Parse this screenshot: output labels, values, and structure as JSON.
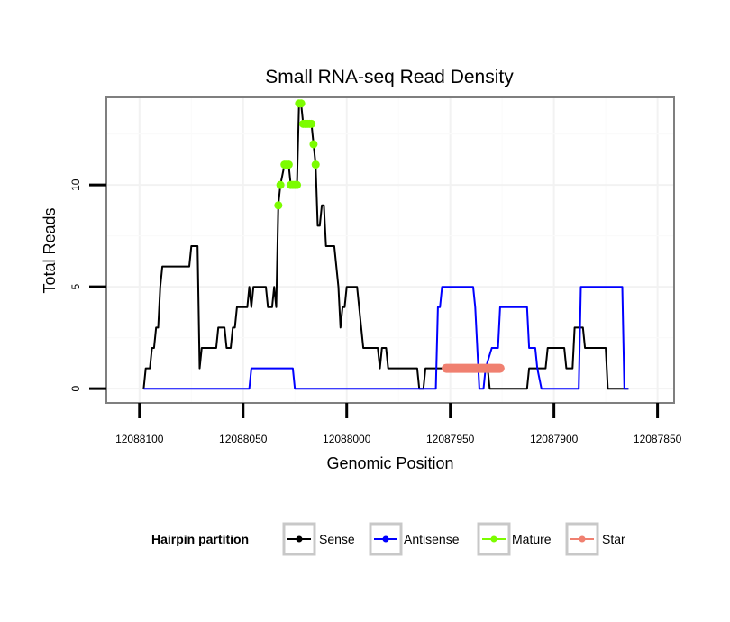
{
  "chart_data": {
    "type": "line",
    "title": "Small RNA-seq Read Density",
    "xlabel": "Genomic Position",
    "ylabel": "Total Reads",
    "x_reversed": true,
    "xlim": [
      12088116,
      12087842
    ],
    "ylim": [
      -0.7,
      14.3
    ],
    "x_ticks": [
      12088100,
      12088050,
      12088000,
      12087950,
      12087900,
      12087850
    ],
    "x_tick_labels": [
      "12088100",
      "12088050",
      "12088000",
      "12087950",
      "12087900",
      "12087850"
    ],
    "y_ticks": [
      0,
      5,
      10
    ],
    "y_tick_labels": [
      "0",
      "5",
      "10"
    ],
    "grid": true,
    "legend": {
      "title": "Hairpin partition",
      "position": "bottom",
      "entries": [
        {
          "label": "Sense",
          "color": "#000000"
        },
        {
          "label": "Antisense",
          "color": "#0000ff"
        },
        {
          "label": "Mature",
          "color": "#7cfc00"
        },
        {
          "label": "Star",
          "color": "#f08070"
        }
      ]
    },
    "series": [
      {
        "name": "Sense",
        "color": "#000000",
        "points": [
          [
            12088098,
            0
          ],
          [
            12088097,
            1
          ],
          [
            12088095,
            1
          ],
          [
            12088094,
            2
          ],
          [
            12088093,
            2
          ],
          [
            12088092,
            3
          ],
          [
            12088091,
            3
          ],
          [
            12088090,
            5
          ],
          [
            12088089,
            6
          ],
          [
            12088076,
            6
          ],
          [
            12088075,
            7
          ],
          [
            12088072,
            7
          ],
          [
            12088071,
            1
          ],
          [
            12088070,
            2
          ],
          [
            12088063,
            2
          ],
          [
            12088062,
            3
          ],
          [
            12088059,
            3
          ],
          [
            12088058,
            2
          ],
          [
            12088056,
            2
          ],
          [
            12088055,
            3
          ],
          [
            12088054,
            3
          ],
          [
            12088053,
            4
          ],
          [
            12088048,
            4
          ],
          [
            12088047,
            5
          ],
          [
            12088046,
            4
          ],
          [
            12088045,
            5
          ],
          [
            12088039,
            5
          ],
          [
            12088038,
            4
          ],
          [
            12088036,
            4
          ],
          [
            12088035,
            5
          ],
          [
            12088034,
            4
          ],
          [
            12088033,
            9
          ],
          [
            12088032,
            10
          ],
          [
            12088030,
            11
          ],
          [
            12088028,
            11
          ],
          [
            12088027,
            10
          ],
          [
            12088024,
            10
          ],
          [
            12088023,
            14
          ],
          [
            12088022,
            14
          ],
          [
            12088021,
            13
          ],
          [
            12088017,
            13
          ],
          [
            12088016,
            12
          ],
          [
            12088015,
            11
          ],
          [
            12088014,
            8
          ],
          [
            12088013,
            8
          ],
          [
            12088012,
            9
          ],
          [
            12088011,
            9
          ],
          [
            12088010,
            7
          ],
          [
            12088006,
            7
          ],
          [
            12088005,
            6
          ],
          [
            12088004,
            5
          ],
          [
            12088003,
            3
          ],
          [
            12088002,
            4
          ],
          [
            12088001,
            4
          ],
          [
            12088000,
            5
          ],
          [
            12087995,
            5
          ],
          [
            12087994,
            4
          ],
          [
            12087993,
            3
          ],
          [
            12087992,
            2
          ],
          [
            12087985,
            2
          ],
          [
            12087984,
            1
          ],
          [
            12087983,
            2
          ],
          [
            12087981,
            2
          ],
          [
            12087980,
            1
          ],
          [
            12087966,
            1
          ],
          [
            12087965,
            0
          ],
          [
            12087963,
            0
          ],
          [
            12087962,
            1
          ],
          [
            12087932,
            1
          ],
          [
            12087931,
            0
          ],
          [
            12087913,
            0
          ],
          [
            12087912,
            1
          ],
          [
            12087904,
            1
          ],
          [
            12087903,
            2
          ],
          [
            12087895,
            2
          ],
          [
            12087894,
            1
          ],
          [
            12087891,
            1
          ],
          [
            12087890,
            3
          ],
          [
            12087886,
            3
          ],
          [
            12087885,
            2
          ],
          [
            12087875,
            2
          ],
          [
            12087874,
            0
          ],
          [
            12087864,
            0
          ]
        ]
      },
      {
        "name": "Antisense",
        "color": "#0000ff",
        "points": [
          [
            12088098,
            0
          ],
          [
            12088047,
            0
          ],
          [
            12088046,
            1
          ],
          [
            12088026,
            1
          ],
          [
            12088025,
            0
          ],
          [
            12087957,
            0
          ],
          [
            12087956,
            4
          ],
          [
            12087955,
            4
          ],
          [
            12087954,
            5
          ],
          [
            12087939,
            5
          ],
          [
            12087938,
            4
          ],
          [
            12087936,
            0
          ],
          [
            12087934,
            0
          ],
          [
            12087933,
            1
          ],
          [
            12087930,
            2
          ],
          [
            12087927,
            2
          ],
          [
            12087926,
            4
          ],
          [
            12087913,
            4
          ],
          [
            12087912,
            2
          ],
          [
            12087909,
            2
          ],
          [
            12087908,
            1
          ],
          [
            12087906,
            0
          ],
          [
            12087888,
            0
          ],
          [
            12087887,
            5
          ],
          [
            12087867,
            5
          ],
          [
            12087866,
            0
          ],
          [
            12087864,
            0
          ]
        ]
      }
    ],
    "mature_points": [
      [
        12088033,
        9
      ],
      [
        12088032,
        10
      ],
      [
        12088030,
        11
      ],
      [
        12088029,
        11
      ],
      [
        12088028,
        11
      ],
      [
        12088027,
        10
      ],
      [
        12088026,
        10
      ],
      [
        12088025,
        10
      ],
      [
        12088024,
        10
      ],
      [
        12088023,
        14
      ],
      [
        12088022,
        14
      ],
      [
        12088021,
        13
      ],
      [
        12088020,
        13
      ],
      [
        12088019,
        13
      ],
      [
        12088018,
        13
      ],
      [
        12088017,
        13
      ],
      [
        12088016,
        12
      ],
      [
        12088015,
        11
      ]
    ],
    "star_segment": {
      "x_start": 12087952,
      "x_end": 12087926,
      "y": 1
    }
  }
}
